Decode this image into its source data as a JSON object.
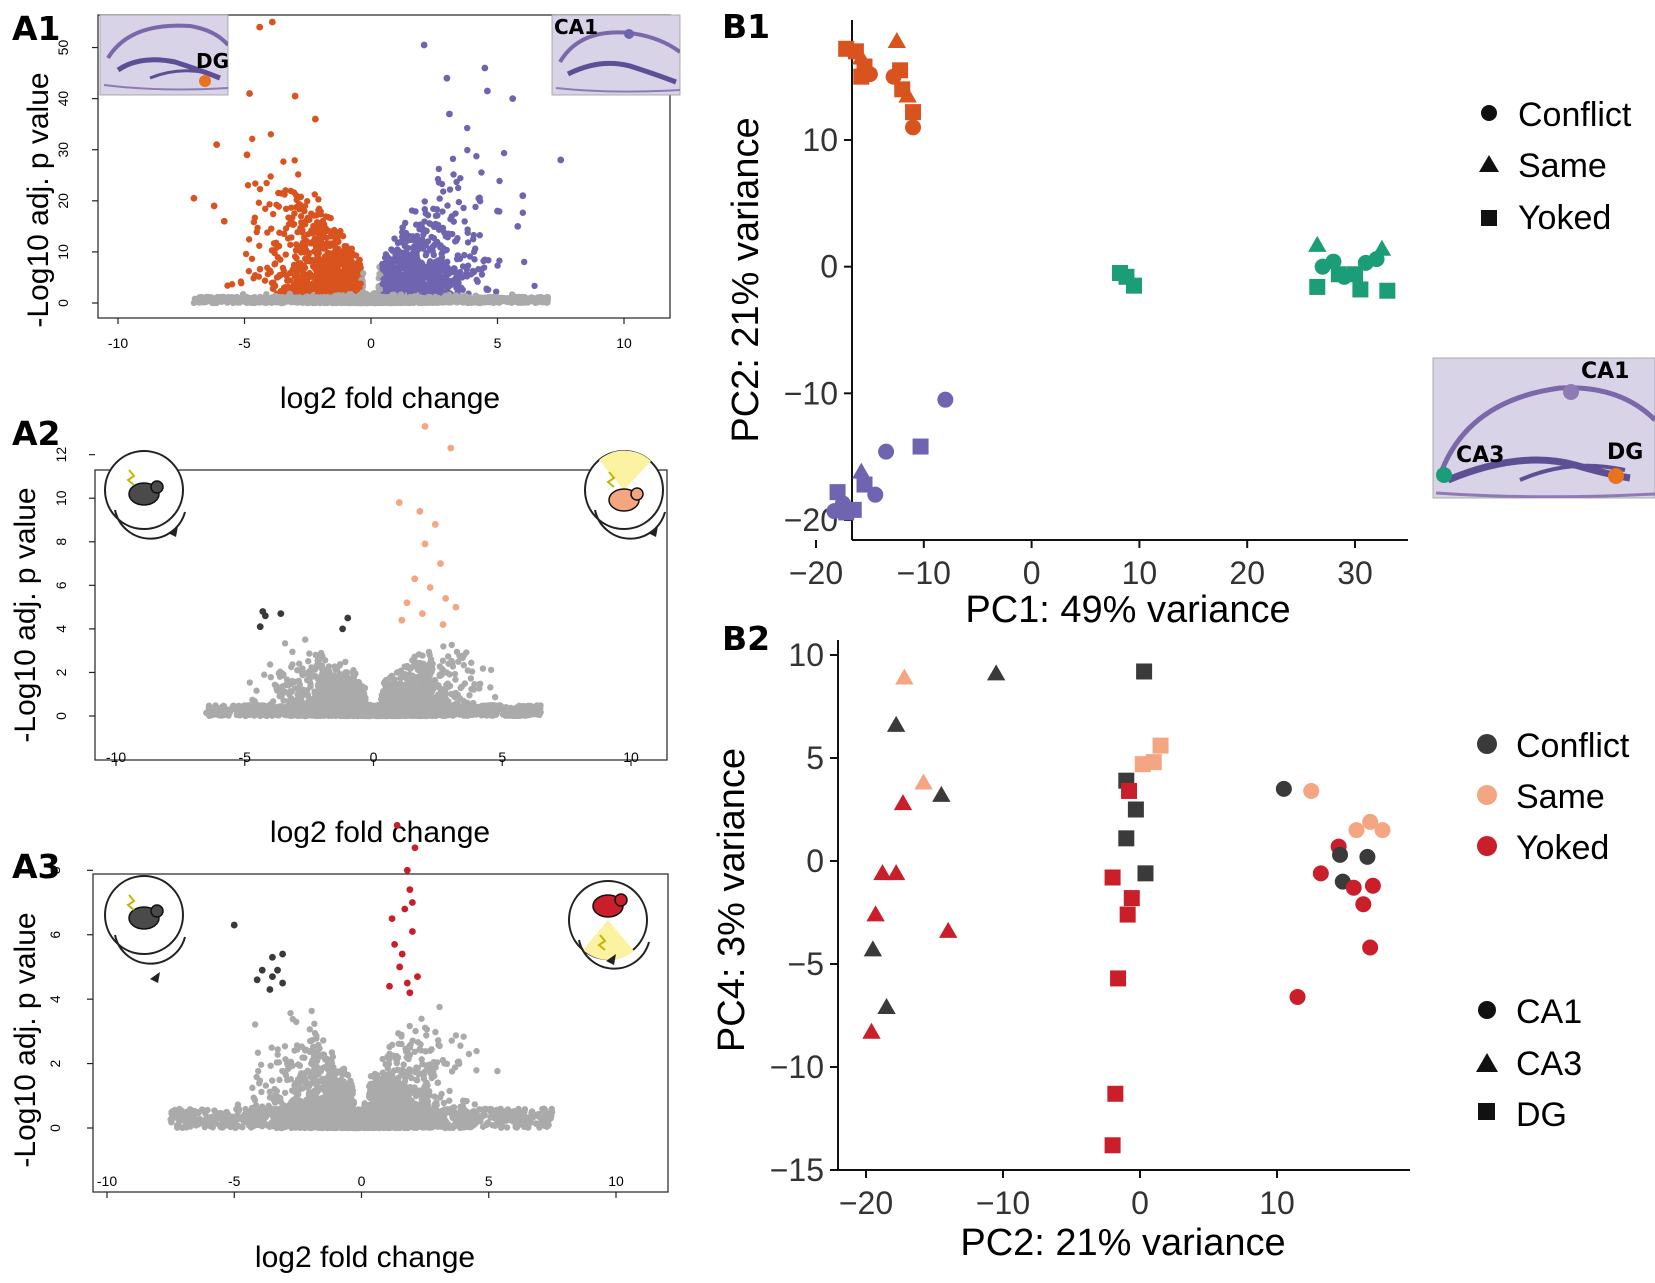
{
  "colors": {
    "orange": "#D9531E",
    "purple": "#6E64B0",
    "green": "#1B9E77",
    "grey": "#AAAAAA",
    "dark": "#3A3A3A",
    "salmon": "#F4A582",
    "red": "#CA1F2A",
    "histo": "#8E7AB5",
    "yellow": "#FBF3A2"
  },
  "icon_names": [
    "hippocampus-section-image",
    "mouse-on-rotating-arena-icon"
  ],
  "chart_data": [
    {
      "panel": "A1",
      "type": "scatter",
      "subtype": "volcano",
      "xlabel": "log2 fold change",
      "ylabel": "-Log10 adj. p value",
      "xlim": [
        -10,
        10
      ],
      "ylim": [
        0,
        55
      ],
      "xticks": [
        "-10",
        "-5",
        "0",
        "5",
        "10"
      ],
      "yticks": [
        "0",
        "10",
        "20",
        "30",
        "40",
        "50"
      ],
      "inset_labels": [
        "DG",
        "CA1"
      ],
      "highlight_points": {
        "orange": [
          [
            -4.4,
            54
          ],
          [
            -3.9,
            55
          ],
          [
            -4.8,
            41
          ],
          [
            -3.0,
            40.5
          ],
          [
            -2.2,
            36
          ],
          [
            -6.1,
            31
          ],
          [
            -7.0,
            20.5
          ],
          [
            -6.2,
            19
          ],
          [
            -5.8,
            16
          ],
          [
            -1.3,
            12
          ],
          [
            -4.9,
            29
          ]
        ],
        "purple": [
          [
            2.1,
            50.5
          ],
          [
            3.0,
            44
          ],
          [
            4.5,
            46
          ],
          [
            4.6,
            41.5
          ],
          [
            5.6,
            40
          ],
          [
            7.5,
            28
          ],
          [
            5.0,
            18
          ],
          [
            5.8,
            15
          ],
          [
            3.1,
            37
          ],
          [
            6.0,
            21
          ]
        ]
      }
    },
    {
      "panel": "A2",
      "type": "scatter",
      "subtype": "volcano",
      "xlabel": "log2 fold change",
      "ylabel": "-Log10 adj. p value",
      "xlim": [
        -10,
        10
      ],
      "ylim": [
        0,
        13.5
      ],
      "xticks": [
        "-10",
        "-5",
        "0",
        "5",
        "10"
      ],
      "yticks": [
        "0",
        "2",
        "4",
        "6",
        "8",
        "10",
        "12"
      ],
      "highlight_points": {
        "dark": [
          [
            -4.3,
            4.8
          ],
          [
            -3.6,
            4.7
          ],
          [
            -4.4,
            4.1
          ],
          [
            -1.0,
            4.5
          ],
          [
            -1.2,
            4.0
          ],
          [
            -4.2,
            4.6
          ]
        ],
        "salmon": [
          [
            2.0,
            13.3
          ],
          [
            3.0,
            12.3
          ],
          [
            1.0,
            9.8
          ],
          [
            1.8,
            9.4
          ],
          [
            2.4,
            8.8
          ],
          [
            2.0,
            7.9
          ],
          [
            2.6,
            7.0
          ],
          [
            1.6,
            6.3
          ],
          [
            2.8,
            5.4
          ],
          [
            3.2,
            5.0
          ],
          [
            1.3,
            5.2
          ],
          [
            2.2,
            5.9
          ],
          [
            1.1,
            4.4
          ],
          [
            1.9,
            4.7
          ],
          [
            2.7,
            4.2
          ]
        ]
      }
    },
    {
      "panel": "A3",
      "type": "scatter",
      "subtype": "volcano",
      "xlabel": "log2 fold change",
      "ylabel": "-Log10 adj. p value",
      "xlim": [
        -10,
        10
      ],
      "ylim": [
        0,
        9.5
      ],
      "xticks": [
        "-10",
        "-5",
        "0",
        "5",
        "10"
      ],
      "yticks": [
        "0",
        "2",
        "4",
        "6",
        "8"
      ],
      "highlight_points": {
        "dark": [
          [
            -5.0,
            6.3
          ],
          [
            -3.5,
            5.3
          ],
          [
            -3.1,
            5.4
          ],
          [
            -3.9,
            4.9
          ],
          [
            -3.5,
            4.7
          ],
          [
            -3.1,
            4.5
          ],
          [
            -3.6,
            4.3
          ],
          [
            -3.3,
            4.9
          ],
          [
            -4.1,
            4.6
          ]
        ],
        "red": [
          [
            1.4,
            9.4
          ],
          [
            2.1,
            8.7
          ],
          [
            1.8,
            8.0
          ],
          [
            1.9,
            7.4
          ],
          [
            1.7,
            6.8
          ],
          [
            2.0,
            6.1
          ],
          [
            1.3,
            5.7
          ],
          [
            1.5,
            5.0
          ],
          [
            2.2,
            4.7
          ],
          [
            1.1,
            4.4
          ],
          [
            1.9,
            4.2
          ],
          [
            1.6,
            5.4
          ],
          [
            2.0,
            7.0
          ],
          [
            1.2,
            6.5
          ],
          [
            1.8,
            4.5
          ]
        ]
      }
    },
    {
      "panel": "B1",
      "type": "scatter",
      "xlabel": "PC1: 49% variance",
      "ylabel": "PC2: 21% variance",
      "xlim": [
        -21,
        35
      ],
      "ylim": [
        -21,
        19
      ],
      "xticks": [
        -20,
        -10,
        0,
        10,
        20,
        30
      ],
      "yticks": [
        -20,
        -10,
        0,
        10
      ],
      "shape_legend": [
        "Conflict",
        "Same",
        "Yoked"
      ],
      "inset_labels": [
        "CA1",
        "CA3",
        "DG"
      ],
      "points": [
        {
          "x": -17.2,
          "y": 17.2,
          "c": "orange",
          "s": "square"
        },
        {
          "x": -16.3,
          "y": 17.0,
          "c": "orange",
          "s": "square"
        },
        {
          "x": -15.8,
          "y": 16.5,
          "c": "orange",
          "s": "triangle"
        },
        {
          "x": -15.5,
          "y": 15.8,
          "c": "orange",
          "s": "square"
        },
        {
          "x": -15.0,
          "y": 15.2,
          "c": "orange",
          "s": "circle"
        },
        {
          "x": -15.8,
          "y": 15.0,
          "c": "orange",
          "s": "square"
        },
        {
          "x": -12.5,
          "y": 17.8,
          "c": "orange",
          "s": "triangle"
        },
        {
          "x": -12.2,
          "y": 15.5,
          "c": "orange",
          "s": "square"
        },
        {
          "x": -12.8,
          "y": 15.0,
          "c": "orange",
          "s": "circle"
        },
        {
          "x": -12.0,
          "y": 14.0,
          "c": "orange",
          "s": "square"
        },
        {
          "x": -11.5,
          "y": 13.5,
          "c": "orange",
          "s": "triangle"
        },
        {
          "x": -11.0,
          "y": 12.2,
          "c": "orange",
          "s": "square"
        },
        {
          "x": -11.0,
          "y": 11.0,
          "c": "orange",
          "s": "circle"
        },
        {
          "x": 8.2,
          "y": -0.5,
          "c": "green",
          "s": "square"
        },
        {
          "x": 8.8,
          "y": -0.8,
          "c": "green",
          "s": "square"
        },
        {
          "x": 9.5,
          "y": -1.5,
          "c": "green",
          "s": "square"
        },
        {
          "x": 26.5,
          "y": 1.7,
          "c": "green",
          "s": "triangle"
        },
        {
          "x": 27.0,
          "y": 0.0,
          "c": "green",
          "s": "circle"
        },
        {
          "x": 28.0,
          "y": 0.4,
          "c": "green",
          "s": "circle"
        },
        {
          "x": 28.5,
          "y": -0.6,
          "c": "green",
          "s": "square"
        },
        {
          "x": 29.0,
          "y": -0.8,
          "c": "green",
          "s": "circle"
        },
        {
          "x": 30.0,
          "y": -0.6,
          "c": "green",
          "s": "square"
        },
        {
          "x": 31.0,
          "y": 0.3,
          "c": "green",
          "s": "circle"
        },
        {
          "x": 32.0,
          "y": 0.6,
          "c": "green",
          "s": "circle"
        },
        {
          "x": 32.5,
          "y": 1.4,
          "c": "green",
          "s": "triangle"
        },
        {
          "x": 26.5,
          "y": -1.6,
          "c": "green",
          "s": "square"
        },
        {
          "x": 30.5,
          "y": -1.8,
          "c": "green",
          "s": "square"
        },
        {
          "x": 33.0,
          "y": -1.9,
          "c": "green",
          "s": "square"
        },
        {
          "x": -8.0,
          "y": -10.5,
          "c": "purple",
          "s": "circle"
        },
        {
          "x": -10.3,
          "y": -14.2,
          "c": "purple",
          "s": "square"
        },
        {
          "x": -13.5,
          "y": -14.6,
          "c": "purple",
          "s": "circle"
        },
        {
          "x": -15.8,
          "y": -16.2,
          "c": "purple",
          "s": "triangle"
        },
        {
          "x": -15.5,
          "y": -17.2,
          "c": "purple",
          "s": "square"
        },
        {
          "x": -14.5,
          "y": -18.0,
          "c": "purple",
          "s": "circle"
        },
        {
          "x": -18.0,
          "y": -17.8,
          "c": "purple",
          "s": "square"
        },
        {
          "x": -18.3,
          "y": -19.3,
          "c": "purple",
          "s": "circle"
        },
        {
          "x": -17.2,
          "y": -19.4,
          "c": "purple",
          "s": "square"
        },
        {
          "x": -16.5,
          "y": -19.2,
          "c": "purple",
          "s": "square"
        },
        {
          "x": -17.5,
          "y": -18.7,
          "c": "purple",
          "s": "circle"
        }
      ]
    },
    {
      "panel": "B2",
      "type": "scatter",
      "xlabel": "PC2: 21% variance",
      "ylabel": "PC4: 3% variance",
      "xlim": [
        -21.5,
        19
      ],
      "ylim": [
        -15,
        10.5
      ],
      "xticks": [
        -20,
        -10,
        0,
        10
      ],
      "yticks": [
        -15,
        -10,
        -5,
        0,
        5,
        10
      ],
      "color_legend": [
        "Conflict",
        "Same",
        "Yoked"
      ],
      "shape_legend": [
        "CA1",
        "CA3",
        "DG"
      ],
      "points": [
        {
          "x": -17.2,
          "y": 8.9,
          "c": "salmon",
          "s": "triangle"
        },
        {
          "x": -10.5,
          "y": 9.1,
          "c": "dark",
          "s": "triangle"
        },
        {
          "x": -17.8,
          "y": 6.6,
          "c": "dark",
          "s": "triangle"
        },
        {
          "x": -15.8,
          "y": 3.8,
          "c": "salmon",
          "s": "triangle"
        },
        {
          "x": -14.5,
          "y": 3.2,
          "c": "dark",
          "s": "triangle"
        },
        {
          "x": -17.3,
          "y": 2.8,
          "c": "red",
          "s": "triangle"
        },
        {
          "x": -18.8,
          "y": -0.6,
          "c": "red",
          "s": "triangle"
        },
        {
          "x": -17.8,
          "y": -0.6,
          "c": "red",
          "s": "triangle"
        },
        {
          "x": -19.3,
          "y": -2.6,
          "c": "red",
          "s": "triangle"
        },
        {
          "x": -14.0,
          "y": -3.4,
          "c": "red",
          "s": "triangle"
        },
        {
          "x": -19.5,
          "y": -4.3,
          "c": "dark",
          "s": "triangle"
        },
        {
          "x": -18.5,
          "y": -7.1,
          "c": "dark",
          "s": "triangle"
        },
        {
          "x": -19.6,
          "y": -8.3,
          "c": "red",
          "s": "triangle"
        },
        {
          "x": 0.3,
          "y": 9.2,
          "c": "dark",
          "s": "square"
        },
        {
          "x": 1.5,
          "y": 5.6,
          "c": "salmon",
          "s": "square"
        },
        {
          "x": 0.2,
          "y": 4.7,
          "c": "salmon",
          "s": "square"
        },
        {
          "x": 1.0,
          "y": 4.8,
          "c": "salmon",
          "s": "square"
        },
        {
          "x": -1.0,
          "y": 3.9,
          "c": "dark",
          "s": "square"
        },
        {
          "x": -0.8,
          "y": 3.4,
          "c": "red",
          "s": "square"
        },
        {
          "x": -0.3,
          "y": 2.5,
          "c": "dark",
          "s": "square"
        },
        {
          "x": -1.0,
          "y": 1.1,
          "c": "dark",
          "s": "square"
        },
        {
          "x": 0.4,
          "y": -0.6,
          "c": "dark",
          "s": "square"
        },
        {
          "x": -2.0,
          "y": -0.8,
          "c": "red",
          "s": "square"
        },
        {
          "x": -0.6,
          "y": -1.8,
          "c": "red",
          "s": "square"
        },
        {
          "x": -0.9,
          "y": -2.6,
          "c": "red",
          "s": "square"
        },
        {
          "x": -1.6,
          "y": -5.7,
          "c": "red",
          "s": "square"
        },
        {
          "x": -1.8,
          "y": -11.3,
          "c": "red",
          "s": "square"
        },
        {
          "x": -2.0,
          "y": -13.8,
          "c": "red",
          "s": "square"
        },
        {
          "x": 10.5,
          "y": 3.5,
          "c": "dark",
          "s": "circle"
        },
        {
          "x": 12.5,
          "y": 3.4,
          "c": "salmon",
          "s": "circle"
        },
        {
          "x": 15.8,
          "y": 1.5,
          "c": "salmon",
          "s": "circle"
        },
        {
          "x": 16.8,
          "y": 1.9,
          "c": "salmon",
          "s": "circle"
        },
        {
          "x": 17.7,
          "y": 1.5,
          "c": "salmon",
          "s": "circle"
        },
        {
          "x": 14.5,
          "y": 0.7,
          "c": "red",
          "s": "circle"
        },
        {
          "x": 14.6,
          "y": 0.3,
          "c": "dark",
          "s": "circle"
        },
        {
          "x": 16.6,
          "y": 0.2,
          "c": "dark",
          "s": "circle"
        },
        {
          "x": 13.2,
          "y": -0.6,
          "c": "red",
          "s": "circle"
        },
        {
          "x": 14.8,
          "y": -1.0,
          "c": "dark",
          "s": "circle"
        },
        {
          "x": 15.6,
          "y": -1.3,
          "c": "red",
          "s": "circle"
        },
        {
          "x": 17.0,
          "y": -1.2,
          "c": "red",
          "s": "circle"
        },
        {
          "x": 16.3,
          "y": -2.1,
          "c": "red",
          "s": "circle"
        },
        {
          "x": 16.8,
          "y": -4.2,
          "c": "red",
          "s": "circle"
        },
        {
          "x": 11.5,
          "y": -6.6,
          "c": "red",
          "s": "circle"
        }
      ]
    }
  ],
  "panel_labels": [
    "A1",
    "A2",
    "A3",
    "B1",
    "B2"
  ]
}
